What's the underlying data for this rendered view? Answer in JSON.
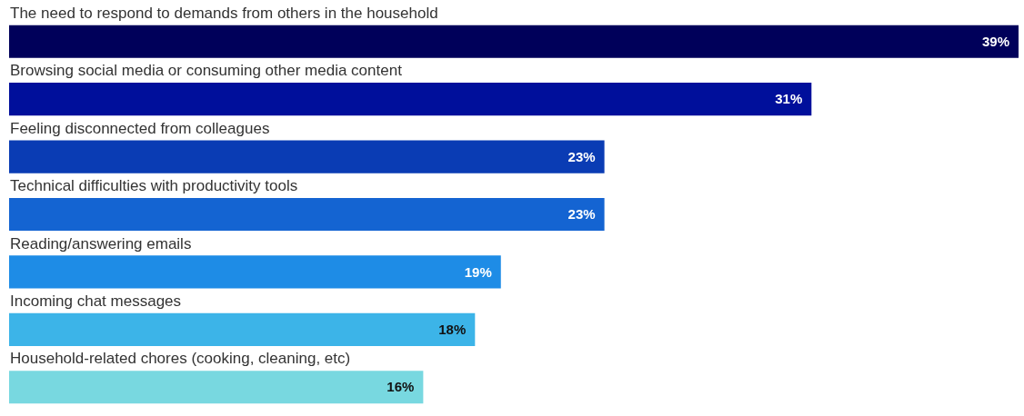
{
  "chart_data": {
    "type": "bar",
    "orientation": "horizontal",
    "value_labels": [
      "39%",
      "31%",
      "23%",
      "23%",
      "19%",
      "18%",
      "16%"
    ],
    "categories": [
      "The need to respond to demands from others in the household",
      "Browsing social media or consuming other media content",
      "Feeling disconnected from colleagues",
      "Technical difficulties with productivity tools",
      "Reading/answering emails",
      "Incoming chat messages",
      "Household-related chores (cooking, cleaning, etc)"
    ],
    "values": [
      39,
      31,
      23,
      23,
      19,
      18,
      16
    ],
    "colors": [
      "#00005a",
      "#000f9b",
      "#0a3cb4",
      "#1464d2",
      "#1e8ce6",
      "#3cb4e8",
      "#78d8e0"
    ]
  }
}
